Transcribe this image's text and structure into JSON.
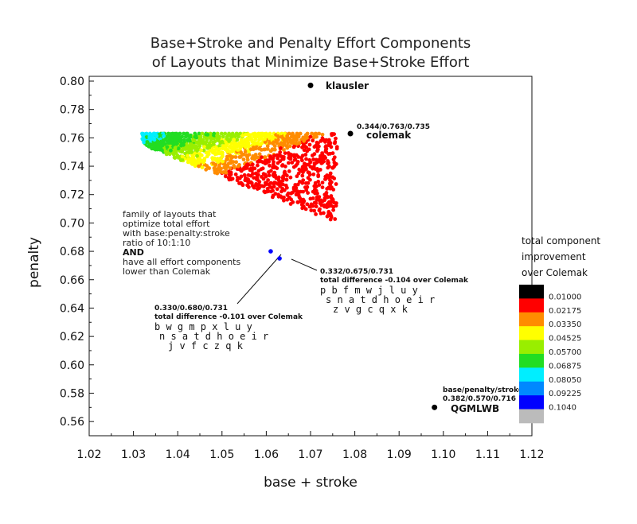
{
  "chart_data": {
    "type": "scatter",
    "title": [
      "Base+Stroke and Penalty Effort Components",
      "of Layouts that Minimize Base+Stroke Effort"
    ],
    "xlabel": "base + stroke",
    "ylabel": "penalty",
    "xlim": [
      1.02,
      1.12
    ],
    "ylim": [
      0.55,
      0.8
    ],
    "xticks": [
      "1.02",
      "1.03",
      "1.04",
      "1.05",
      "1.06",
      "1.07",
      "1.08",
      "1.09",
      "1.10",
      "1.11",
      "1.12"
    ],
    "yticks": [
      "0.56",
      "0.58",
      "0.60",
      "0.62",
      "0.64",
      "0.66",
      "0.68",
      "0.70",
      "0.72",
      "0.74",
      "0.76",
      "0.78",
      "0.80"
    ],
    "legend": {
      "title": [
        "total component",
        "improvement",
        "over Colemak"
      ],
      "placement": "right",
      "levels": [
        {
          "label": "0.01000",
          "color": "#000000"
        },
        {
          "label": "0.02175",
          "color": "#ff0000"
        },
        {
          "label": "0.03350",
          "color": "#ff8c00"
        },
        {
          "label": "0.04525",
          "color": "#ffff00"
        },
        {
          "label": "0.05700",
          "color": "#99ee00"
        },
        {
          "label": "0.06875",
          "color": "#22dd22"
        },
        {
          "label": "0.08050",
          "color": "#00eeff"
        },
        {
          "label": "0.09225",
          "color": "#0088ff"
        },
        {
          "label": "0.1040",
          "color": "#0000ff"
        },
        {
          "label": "",
          "color": "#bbbbbb"
        }
      ]
    },
    "named_points": [
      {
        "name": "klausler",
        "x": 1.07,
        "y": 0.797
      },
      {
        "name": "colemak",
        "x": 1.079,
        "y": 0.763,
        "label": "0.344/0.763/0.735"
      },
      {
        "name": "QGMLWB",
        "x": 1.098,
        "y": 0.57,
        "label_top": "base/penalty/stroke",
        "label": "0.382/0.570/0.716"
      }
    ],
    "highlighted_points": [
      {
        "x": 1.061,
        "y": 0.68,
        "color": "#0000ff",
        "values": "0.330/0.680/0.731",
        "difference": "total difference -0.101 over Colemak",
        "rows": [
          "b w g m p x l u y",
          "n s a t d h o e i r",
          "j v f c z q k"
        ]
      },
      {
        "x": 1.063,
        "y": 0.675,
        "color": "#0000ff",
        "values": "0.332/0.675/0.731",
        "difference": "total difference -0.104 over Colemak",
        "rows": [
          "p b f m w j l u y",
          "s n a t d h o e i r",
          "z v g c q x k"
        ]
      }
    ],
    "family_note": [
      "family of layouts that",
      "optimize total effort",
      "with base:penalty:stroke",
      "ratio of 10:1:10"
    ],
    "family_and": "AND",
    "family_note2": [
      "have all effort components",
      "lower than Colemak"
    ],
    "cloud": {
      "x_range": [
        1.032,
        1.076
      ],
      "y_max": 0.763,
      "description_points": "generated"
    }
  }
}
